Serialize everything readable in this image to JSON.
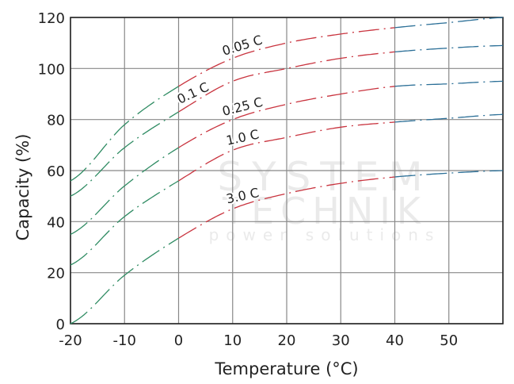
{
  "chart_data": {
    "type": "line",
    "title": "",
    "xlabel": "Temperature (°C)",
    "ylabel": "Capacity (%)",
    "xlim": [
      -20,
      60
    ],
    "ylim": [
      0,
      120
    ],
    "x_ticks": [
      -20,
      -10,
      0,
      10,
      20,
      30,
      40,
      50
    ],
    "y_ticks": [
      0,
      20,
      40,
      60,
      80,
      100,
      120
    ],
    "grid": true,
    "line_style": "dash-dot",
    "colors": {
      "below_0": "#2e8b62",
      "0_to_40": "#c9343f",
      "above_40": "#2b6f97"
    },
    "x": [
      -20,
      -10,
      0,
      10,
      20,
      30,
      40,
      50,
      60
    ],
    "series": [
      {
        "name": "0.05 C",
        "values": [
          56,
          78,
          93,
          104,
          110,
          113.5,
          116,
          118,
          120
        ]
      },
      {
        "name": "0.1 C",
        "values": [
          50,
          69,
          83,
          95,
          100,
          104,
          106.5,
          108,
          109
        ]
      },
      {
        "name": "0.25 C",
        "values": [
          35,
          54,
          69,
          80,
          86,
          90,
          93,
          94,
          95
        ]
      },
      {
        "name": "1.0 C",
        "values": [
          23,
          42,
          56,
          68,
          73,
          77,
          79,
          80.5,
          82
        ]
      },
      {
        "name": "3.0 C",
        "values": [
          0,
          19,
          33.5,
          45,
          51,
          55,
          57.5,
          59,
          60
        ]
      }
    ]
  },
  "watermark": {
    "line1": "SYSTEM",
    "line2": "TECHNIK",
    "line3": "power solutions"
  }
}
